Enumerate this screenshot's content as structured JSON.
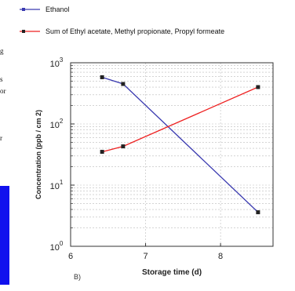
{
  "left_fragments": [
    "g",
    "s",
    "or",
    "r"
  ],
  "chart_data": {
    "type": "line",
    "title": "",
    "xlabel": "Storage time (d)",
    "ylabel": "Concentration (ppb / cm 2)",
    "panel_label": "B)",
    "xlim": [
      6,
      8.7
    ],
    "ylim": [
      1,
      1000
    ],
    "yscale": "log",
    "xticks": [
      6,
      7,
      8
    ],
    "yticks": [
      {
        "base": "10",
        "exp": "0",
        "value": 1
      },
      {
        "base": "10",
        "exp": "1",
        "value": 10
      },
      {
        "base": "10",
        "exp": "2",
        "value": 100
      },
      {
        "base": "10",
        "exp": "3",
        "value": 1000
      }
    ],
    "grid": true,
    "legend": "top-left",
    "series": [
      {
        "name": "Ethanol",
        "color": "#3a3ab0",
        "marker": "square",
        "x": [
          6.42,
          6.7,
          8.5
        ],
        "y": [
          580,
          450,
          3.6
        ]
      },
      {
        "name": "Sum of Ethyl acetate, Methyl propionate, Propyl formeate",
        "color": "#ee2222",
        "marker": "square",
        "x": [
          6.42,
          6.7,
          8.5
        ],
        "y": [
          35,
          43,
          400
        ]
      }
    ]
  }
}
